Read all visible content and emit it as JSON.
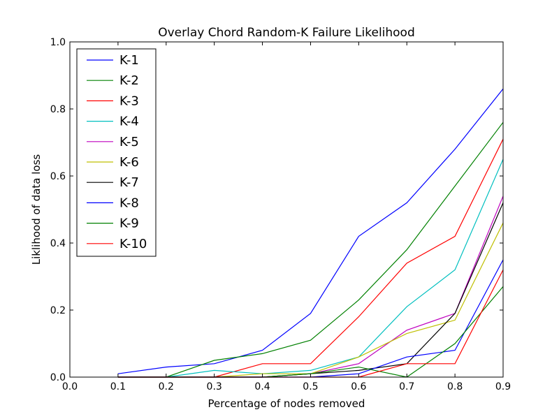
{
  "chart_data": {
    "type": "line",
    "title": "Overlay Chord Random-K Failure Likelihood",
    "xlabel": "Percentage of nodes removed",
    "ylabel": "Liklihood of data loss",
    "xlim": [
      0.0,
      0.9
    ],
    "ylim": [
      0.0,
      1.0
    ],
    "xticks": [
      "0.0",
      "0.1",
      "0.2",
      "0.3",
      "0.4",
      "0.5",
      "0.6",
      "0.7",
      "0.8",
      "0.9"
    ],
    "yticks": [
      "0.0",
      "0.2",
      "0.4",
      "0.6",
      "0.8",
      "1.0"
    ],
    "grid": false,
    "legend_position": "top-left",
    "x": [
      0.1,
      0.2,
      0.3,
      0.4,
      0.5,
      0.6,
      0.7,
      0.8,
      0.9
    ],
    "series": [
      {
        "name": "K-1",
        "color": "#0000ff",
        "values": [
          0.01,
          0.03,
          0.04,
          0.08,
          0.19,
          0.42,
          0.52,
          0.68,
          0.86
        ]
      },
      {
        "name": "K-2",
        "color": "#008000",
        "values": [
          0.0,
          0.0,
          0.05,
          0.07,
          0.11,
          0.23,
          0.38,
          0.57,
          0.76
        ]
      },
      {
        "name": "K-3",
        "color": "#ff0000",
        "values": [
          0.0,
          0.0,
          0.0,
          0.04,
          0.04,
          0.18,
          0.34,
          0.42,
          0.71
        ]
      },
      {
        "name": "K-4",
        "color": "#00bfbf",
        "values": [
          0.0,
          0.0,
          0.02,
          0.01,
          0.02,
          0.06,
          0.21,
          0.32,
          0.65
        ]
      },
      {
        "name": "K-5",
        "color": "#bf00bf",
        "values": [
          0.0,
          0.0,
          0.0,
          0.0,
          0.01,
          0.04,
          0.14,
          0.19,
          0.54
        ]
      },
      {
        "name": "K-6",
        "color": "#bfbf00",
        "values": [
          0.0,
          0.0,
          0.0,
          0.01,
          0.01,
          0.06,
          0.13,
          0.17,
          0.46
        ]
      },
      {
        "name": "K-7",
        "color": "#000000",
        "values": [
          0.0,
          0.0,
          0.0,
          0.0,
          0.01,
          0.02,
          0.04,
          0.19,
          0.52
        ]
      },
      {
        "name": "K-8",
        "color": "#0000ff",
        "values": [
          0.0,
          0.0,
          0.0,
          0.0,
          0.0,
          0.01,
          0.06,
          0.08,
          0.35
        ]
      },
      {
        "name": "K-9",
        "color": "#008000",
        "values": [
          0.0,
          0.0,
          0.0,
          0.0,
          0.01,
          0.03,
          0.0,
          0.1,
          0.27
        ]
      },
      {
        "name": "K-10",
        "color": "#ff0000",
        "values": [
          0.0,
          0.0,
          0.0,
          0.0,
          0.0,
          0.0,
          0.04,
          0.04,
          0.32
        ]
      }
    ]
  }
}
